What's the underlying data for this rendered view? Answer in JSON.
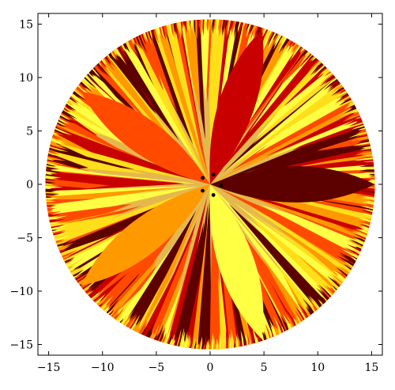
{
  "chart_data": {
    "type": "heatmap",
    "title": "",
    "xlabel": "",
    "ylabel": "",
    "xlim": [
      -16,
      16
    ],
    "ylim": [
      -16,
      16
    ],
    "x_ticks": [
      -15,
      -10,
      -5,
      0,
      5,
      10,
      15
    ],
    "y_ticks": [
      -15,
      -10,
      -5,
      0,
      5,
      10,
      15
    ],
    "x_tick_labels": [
      "−15",
      "−10",
      "−5",
      "0",
      "5",
      "10",
      "15"
    ],
    "y_tick_labels": [
      "−15",
      "−10",
      "−5",
      "0",
      "5",
      "10",
      "15"
    ],
    "disk": {
      "center": [
        0,
        0
      ],
      "radius": 15.3
    },
    "background_color": "#e5b84e",
    "palette": [
      "#5c0000",
      "#c80000",
      "#ff4a00",
      "#ff9900",
      "#ffdf1a",
      "#ffff44"
    ],
    "petals": [
      {
        "tip": [
          15.3,
          0
        ],
        "color": "#5c0000"
      },
      {
        "tip": [
          4.8,
          14.5
        ],
        "color": "#c80000"
      },
      {
        "tip": [
          -12,
          8.7
        ],
        "color": "#ff4a00"
      },
      {
        "tip": [
          -12,
          -9.5
        ],
        "color": "#ff9900"
      },
      {
        "tip": [
          4.8,
          -14.5
        ],
        "color": "#ffff44"
      }
    ],
    "points": [
      {
        "x": -0.7,
        "y": 0.6
      },
      {
        "x": 0.3,
        "y": 0.9
      },
      {
        "x": 1.0,
        "y": -0.1
      },
      {
        "x": 0.3,
        "y": -1.0
      },
      {
        "x": -0.7,
        "y": -0.6
      }
    ]
  }
}
